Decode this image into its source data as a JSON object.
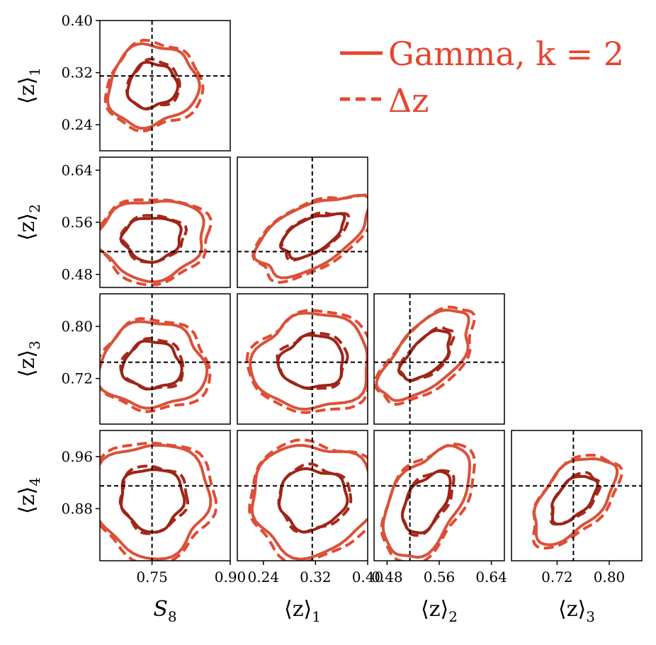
{
  "chart_data": {
    "type": "corner",
    "parameters": [
      {
        "latex": "S_8",
        "base": "S",
        "sub": "8",
        "range": [
          0.65,
          0.9
        ],
        "ticks": [
          "0.75",
          "0.90"
        ],
        "truth": 0.75
      },
      {
        "latex": "<z>_1",
        "base": "⟨z⟩",
        "sub": "1",
        "range": [
          0.2,
          0.4
        ],
        "ticks": [
          "0.24",
          "0.32",
          "0.40"
        ],
        "truth": 0.315
      },
      {
        "latex": "<z>_2",
        "base": "⟨z⟩",
        "sub": "2",
        "range": [
          0.46,
          0.66
        ],
        "ticks": [
          "0.48",
          "0.56",
          "0.64"
        ],
        "truth": 0.515
      },
      {
        "latex": "<z>_3",
        "base": "⟨z⟩",
        "sub": "3",
        "range": [
          0.65,
          0.85
        ],
        "ticks": [
          "0.72",
          "0.80"
        ],
        "truth": 0.745
      },
      {
        "latex": "<z>_4",
        "base": "⟨z⟩",
        "sub": "4",
        "range": [
          0.8,
          1.0
        ],
        "ticks": [
          "0.88",
          "0.96"
        ],
        "truth": 0.915
      }
    ],
    "y_ticks": {
      "1": [
        "0.24",
        "0.32",
        "0.40"
      ],
      "2": [
        "0.48",
        "0.56",
        "0.64"
      ],
      "3": [
        "0.72",
        "0.80"
      ],
      "4": [
        "0.88",
        "0.96"
      ]
    },
    "series": [
      {
        "name": "Gamma, k = 2",
        "style": "solid",
        "color_inner": "#9c2417",
        "color_outer": "#d9523a"
      },
      {
        "name": "Δz",
        "style": "dashed",
        "color_inner": "#a82a1c",
        "color_outer": "#e24a33"
      }
    ],
    "contours": [
      {
        "row": 1,
        "col": 0,
        "cx": 0.75,
        "cy": 0.3,
        "rx": 0.06,
        "ry": 0.042,
        "rot": 20
      },
      {
        "row": 2,
        "col": 0,
        "cx": 0.75,
        "cy": 0.535,
        "rx": 0.07,
        "ry": 0.042,
        "rot": 5
      },
      {
        "row": 2,
        "col": 1,
        "cx": 0.315,
        "cy": 0.54,
        "rx": 0.065,
        "ry": 0.032,
        "rot": 28
      },
      {
        "row": 3,
        "col": 0,
        "cx": 0.75,
        "cy": 0.74,
        "rx": 0.07,
        "ry": 0.045,
        "rot": 0
      },
      {
        "row": 3,
        "col": 1,
        "cx": 0.315,
        "cy": 0.745,
        "rx": 0.062,
        "ry": 0.05,
        "rot": 8
      },
      {
        "row": 3,
        "col": 2,
        "cx": 0.54,
        "cy": 0.755,
        "rx": 0.06,
        "ry": 0.03,
        "rot": 45
      },
      {
        "row": 4,
        "col": 0,
        "cx": 0.75,
        "cy": 0.895,
        "rx": 0.075,
        "ry": 0.06,
        "rot": 0
      },
      {
        "row": 4,
        "col": 1,
        "cx": 0.315,
        "cy": 0.895,
        "rx": 0.065,
        "ry": 0.058,
        "rot": 10
      },
      {
        "row": 4,
        "col": 2,
        "cx": 0.54,
        "cy": 0.89,
        "rx": 0.065,
        "ry": 0.035,
        "rot": 58
      },
      {
        "row": 4,
        "col": 3,
        "cx": 0.745,
        "cy": 0.895,
        "rx": 0.055,
        "ry": 0.03,
        "rot": 48
      }
    ],
    "legend": {
      "position": "top-right"
    },
    "grid": false
  },
  "colors": {
    "solid_legend": "#e8432f",
    "truth_line": "#000000"
  }
}
